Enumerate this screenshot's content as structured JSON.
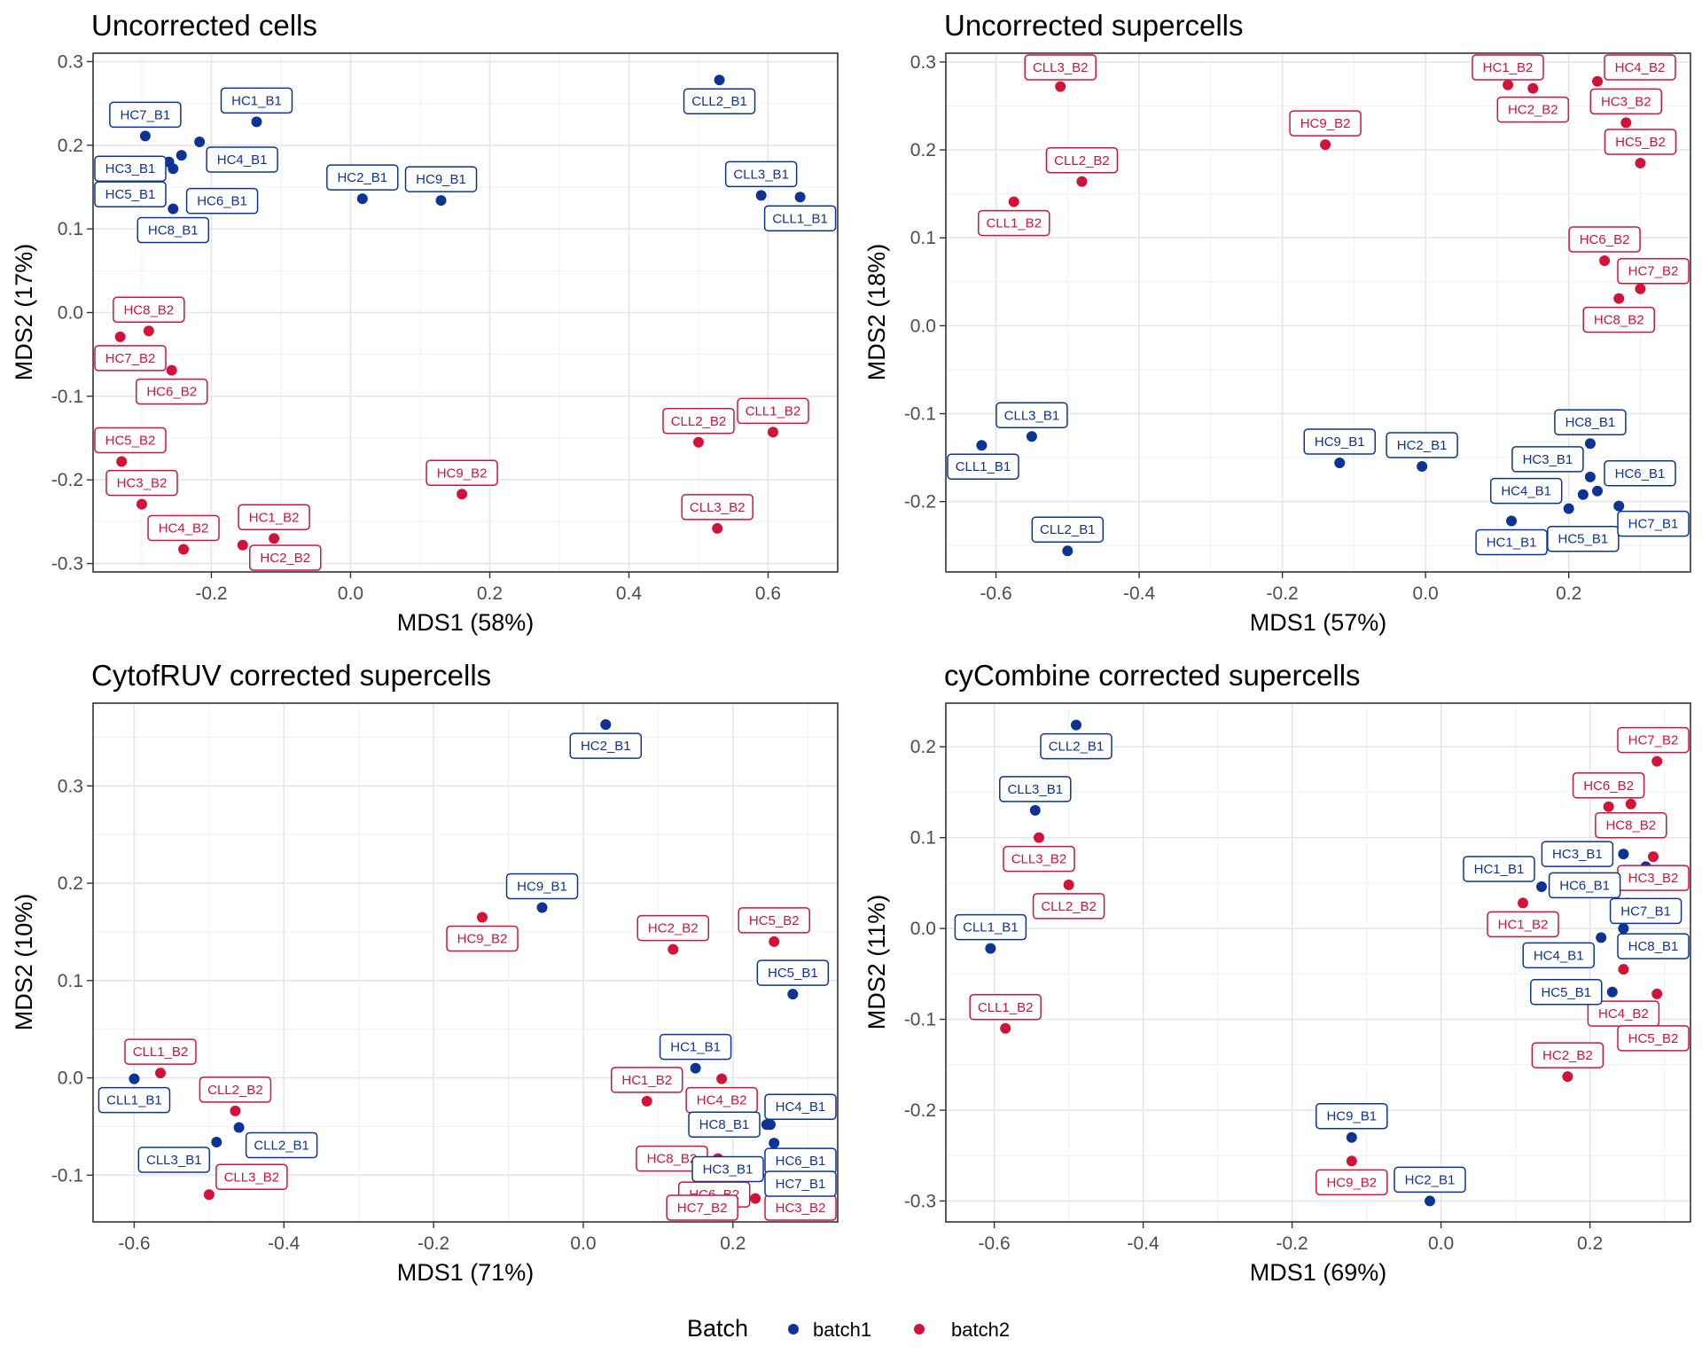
{
  "colors": {
    "batch1": "#0d3395",
    "batch2": "#d1133a"
  },
  "legend": {
    "title": "Batch",
    "items": [
      {
        "label": "batch1",
        "color": "#0d3395"
      },
      {
        "label": "batch2",
        "color": "#d1133a"
      }
    ]
  },
  "chart_data": [
    {
      "type": "scatter",
      "title": "Uncorrected cells",
      "xlabel": "MDS1 (58%)",
      "ylabel": "MDS2 (17%)",
      "xlim": [
        -0.37,
        0.7
      ],
      "ylim": [
        -0.31,
        0.31
      ],
      "xticks": [
        -0.2,
        0.0,
        0.2,
        0.4,
        0.6
      ],
      "xtick_labels": [
        "-0.2",
        "0.0",
        "0.2",
        "0.4",
        "0.6"
      ],
      "yticks": [
        -0.3,
        -0.2,
        -0.1,
        0.0,
        0.1,
        0.2,
        0.3
      ],
      "ytick_labels": [
        "-0.3",
        "-0.2",
        "-0.1",
        "0.0",
        "0.1",
        "0.2",
        "0.3"
      ],
      "grid": true,
      "points": [
        {
          "label": "CLL2_B1",
          "batch": "batch1",
          "x": 0.53,
          "y": 0.278
        },
        {
          "label": "HC1_B1",
          "batch": "batch1",
          "x": -0.135,
          "y": 0.228
        },
        {
          "label": "HC7_B1",
          "batch": "batch1",
          "x": -0.295,
          "y": 0.211
        },
        {
          "label": "HC4_B1",
          "batch": "batch1",
          "x": -0.217,
          "y": 0.204
        },
        {
          "label": "HC5_B1",
          "batch": "batch1",
          "x": -0.243,
          "y": 0.188
        },
        {
          "label": "HC6_B1",
          "batch": "batch1",
          "x": -0.261,
          "y": 0.18
        },
        {
          "label": "HC3_B1",
          "batch": "batch1",
          "x": -0.255,
          "y": 0.172
        },
        {
          "label": "HC8_B1",
          "batch": "batch1",
          "x": -0.255,
          "y": 0.124
        },
        {
          "label": "HC2_B1",
          "batch": "batch1",
          "x": 0.017,
          "y": 0.136
        },
        {
          "label": "HC9_B1",
          "batch": "batch1",
          "x": 0.13,
          "y": 0.134
        },
        {
          "label": "CLL3_B1",
          "batch": "batch1",
          "x": 0.59,
          "y": 0.14
        },
        {
          "label": "CLL1_B1",
          "batch": "batch1",
          "x": 0.646,
          "y": 0.138
        },
        {
          "label": "HC8_B2",
          "batch": "batch2",
          "x": -0.29,
          "y": -0.022
        },
        {
          "label": "HC7_B2",
          "batch": "batch2",
          "x": -0.331,
          "y": -0.029
        },
        {
          "label": "HC6_B2",
          "batch": "batch2",
          "x": -0.257,
          "y": -0.069
        },
        {
          "label": "HC5_B2",
          "batch": "batch2",
          "x": -0.329,
          "y": -0.178
        },
        {
          "label": "HC3_B2",
          "batch": "batch2",
          "x": -0.3,
          "y": -0.229
        },
        {
          "label": "HC4_B2",
          "batch": "batch2",
          "x": -0.24,
          "y": -0.283
        },
        {
          "label": "HC2_B2",
          "batch": "batch2",
          "x": -0.155,
          "y": -0.278
        },
        {
          "label": "HC1_B2",
          "batch": "batch2",
          "x": -0.11,
          "y": -0.27
        },
        {
          "label": "HC9_B2",
          "batch": "batch2",
          "x": 0.16,
          "y": -0.217
        },
        {
          "label": "CLL1_B2",
          "batch": "batch2",
          "x": 0.607,
          "y": -0.143
        },
        {
          "label": "CLL2_B2",
          "batch": "batch2",
          "x": 0.5,
          "y": -0.155
        },
        {
          "label": "CLL3_B2",
          "batch": "batch2",
          "x": 0.527,
          "y": -0.258
        }
      ]
    },
    {
      "type": "scatter",
      "title": "Uncorrected supercells",
      "xlabel": "MDS1 (57%)",
      "ylabel": "MDS2 (18%)",
      "xlim": [
        -0.67,
        0.37
      ],
      "ylim": [
        -0.28,
        0.31
      ],
      "xticks": [
        -0.6,
        -0.4,
        -0.2,
        0.0,
        0.2
      ],
      "xtick_labels": [
        "-0.6",
        "-0.4",
        "-0.2",
        "0.0",
        "0.2"
      ],
      "yticks": [
        -0.2,
        -0.1,
        0.0,
        0.1,
        0.2,
        0.3
      ],
      "ytick_labels": [
        "-0.2",
        "-0.1",
        "0.0",
        "0.1",
        "0.2",
        "0.3"
      ],
      "grid": true,
      "points": [
        {
          "label": "CLL3_B2",
          "batch": "batch2",
          "x": -0.51,
          "y": 0.272
        },
        {
          "label": "HC1_B2",
          "batch": "batch2",
          "x": 0.115,
          "y": 0.274
        },
        {
          "label": "HC2_B2",
          "batch": "batch2",
          "x": 0.15,
          "y": 0.27
        },
        {
          "label": "HC4_B2",
          "batch": "batch2",
          "x": 0.24,
          "y": 0.278
        },
        {
          "label": "HC3_B2",
          "batch": "batch2",
          "x": 0.28,
          "y": 0.231
        },
        {
          "label": "HC5_B2",
          "batch": "batch2",
          "x": 0.3,
          "y": 0.185
        },
        {
          "label": "HC9_B2",
          "batch": "batch2",
          "x": -0.14,
          "y": 0.206
        },
        {
          "label": "CLL2_B2",
          "batch": "batch2",
          "x": -0.48,
          "y": 0.164
        },
        {
          "label": "CLL1_B2",
          "batch": "batch2",
          "x": -0.575,
          "y": 0.141
        },
        {
          "label": "HC6_B2",
          "batch": "batch2",
          "x": 0.25,
          "y": 0.074
        },
        {
          "label": "HC7_B2",
          "batch": "batch2",
          "x": 0.3,
          "y": 0.042
        },
        {
          "label": "HC8_B2",
          "batch": "batch2",
          "x": 0.27,
          "y": 0.031
        },
        {
          "label": "CLL3_B1",
          "batch": "batch1",
          "x": -0.55,
          "y": -0.126
        },
        {
          "label": "CLL1_B1",
          "batch": "batch1",
          "x": -0.62,
          "y": -0.136
        },
        {
          "label": "HC9_B1",
          "batch": "batch1",
          "x": -0.12,
          "y": -0.156
        },
        {
          "label": "HC2_B1",
          "batch": "batch1",
          "x": -0.005,
          "y": -0.16
        },
        {
          "label": "HC8_B1",
          "batch": "batch1",
          "x": 0.23,
          "y": -0.134
        },
        {
          "label": "HC3_B1",
          "batch": "batch1",
          "x": 0.23,
          "y": -0.172
        },
        {
          "label": "HC6_B1",
          "batch": "batch1",
          "x": 0.24,
          "y": -0.188
        },
        {
          "label": "HC5_B1",
          "batch": "batch1",
          "x": 0.22,
          "y": -0.192
        },
        {
          "label": "HC7_B1",
          "batch": "batch1",
          "x": 0.27,
          "y": -0.205
        },
        {
          "label": "HC4_B1",
          "batch": "batch1",
          "x": 0.2,
          "y": -0.208
        },
        {
          "label": "HC1_B1",
          "batch": "batch1",
          "x": 0.12,
          "y": -0.222
        },
        {
          "label": "CLL2_B1",
          "batch": "batch1",
          "x": -0.5,
          "y": -0.256
        }
      ]
    },
    {
      "type": "scatter",
      "title": "CytofRUV corrected supercells",
      "xlabel": "MDS1 (71%)",
      "ylabel": "MDS2 (10%)",
      "xlim": [
        -0.655,
        0.34
      ],
      "ylim": [
        -0.148,
        0.385
      ],
      "xticks": [
        -0.6,
        -0.4,
        -0.2,
        0.0,
        0.2
      ],
      "xtick_labels": [
        "-0.6",
        "-0.4",
        "-0.2",
        "0.0",
        "0.2"
      ],
      "yticks": [
        -0.1,
        0.0,
        0.1,
        0.2,
        0.3
      ],
      "ytick_labels": [
        "-0.1",
        "0.0",
        "0.1",
        "0.2",
        "0.3"
      ],
      "grid": true,
      "points": [
        {
          "label": "HC2_B1",
          "batch": "batch1",
          "x": 0.03,
          "y": 0.363
        },
        {
          "label": "HC9_B1",
          "batch": "batch1",
          "x": -0.055,
          "y": 0.175
        },
        {
          "label": "HC9_B2",
          "batch": "batch2",
          "x": -0.135,
          "y": 0.165
        },
        {
          "label": "HC2_B2",
          "batch": "batch2",
          "x": 0.12,
          "y": 0.132
        },
        {
          "label": "HC5_B2",
          "batch": "batch2",
          "x": 0.255,
          "y": 0.14
        },
        {
          "label": "HC5_B1",
          "batch": "batch1",
          "x": 0.28,
          "y": 0.086
        },
        {
          "label": "HC1_B1",
          "batch": "batch1",
          "x": 0.15,
          "y": 0.01
        },
        {
          "label": "HC4_B2",
          "batch": "batch2",
          "x": 0.185,
          "y": -0.001
        },
        {
          "label": "HC1_B2",
          "batch": "batch2",
          "x": 0.085,
          "y": -0.024
        },
        {
          "label": "HC4_B1",
          "batch": "batch1",
          "x": 0.245,
          "y": -0.048
        },
        {
          "label": "HC8_B1",
          "batch": "batch1",
          "x": 0.25,
          "y": -0.048
        },
        {
          "label": "HC6_B1",
          "batch": "batch1",
          "x": 0.255,
          "y": -0.067
        },
        {
          "label": "HC8_B2",
          "batch": "batch2",
          "x": 0.18,
          "y": -0.083
        },
        {
          "label": "HC6_B2",
          "batch": "batch2",
          "x": 0.175,
          "y": -0.098
        },
        {
          "label": "HC3_B2",
          "batch": "batch2",
          "x": 0.235,
          "y": -0.1
        },
        {
          "label": "HC7_B1",
          "batch": "batch1",
          "x": 0.3,
          "y": -0.087
        },
        {
          "label": "HC3_B1",
          "batch": "batch1",
          "x": 0.25,
          "y": -0.112
        },
        {
          "label": "HC7_B2",
          "batch": "batch2",
          "x": 0.23,
          "y": -0.124
        },
        {
          "label": "CLL1_B1",
          "batch": "batch1",
          "x": -0.6,
          "y": -0.001
        },
        {
          "label": "CLL1_B2",
          "batch": "batch2",
          "x": -0.565,
          "y": 0.005
        },
        {
          "label": "CLL2_B2",
          "batch": "batch2",
          "x": -0.465,
          "y": -0.034
        },
        {
          "label": "CLL2_B1",
          "batch": "batch1",
          "x": -0.46,
          "y": -0.051
        },
        {
          "label": "CLL3_B1",
          "batch": "batch1",
          "x": -0.49,
          "y": -0.066
        },
        {
          "label": "CLL3_B2",
          "batch": "batch2",
          "x": -0.5,
          "y": -0.12
        }
      ]
    },
    {
      "type": "scatter",
      "title": "cyCombine corrected supercells",
      "xlabel": "MDS1 (69%)",
      "ylabel": "MDS2 (11%)",
      "xlim": [
        -0.665,
        0.335
      ],
      "ylim": [
        -0.323,
        0.248
      ],
      "xticks": [
        -0.6,
        -0.4,
        -0.2,
        0.0,
        0.2
      ],
      "xtick_labels": [
        "-0.6",
        "-0.4",
        "-0.2",
        "0.0",
        "0.2"
      ],
      "yticks": [
        -0.3,
        -0.2,
        -0.1,
        0.0,
        0.1,
        0.2
      ],
      "ytick_labels": [
        "-0.3",
        "-0.2",
        "-0.1",
        "0.0",
        "0.1",
        "0.2"
      ],
      "grid": true,
      "points": [
        {
          "label": "CLL2_B1",
          "batch": "batch1",
          "x": -0.49,
          "y": 0.224
        },
        {
          "label": "CLL3_B1",
          "batch": "batch1",
          "x": -0.545,
          "y": 0.13
        },
        {
          "label": "CLL3_B2",
          "batch": "batch2",
          "x": -0.54,
          "y": 0.1
        },
        {
          "label": "CLL2_B2",
          "batch": "batch2",
          "x": -0.5,
          "y": 0.048
        },
        {
          "label": "CLL1_B1",
          "batch": "batch1",
          "x": -0.605,
          "y": -0.022
        },
        {
          "label": "CLL1_B2",
          "batch": "batch2",
          "x": -0.585,
          "y": -0.11
        },
        {
          "label": "HC9_B1",
          "batch": "batch1",
          "x": -0.12,
          "y": -0.23
        },
        {
          "label": "HC9_B2",
          "batch": "batch2",
          "x": -0.12,
          "y": -0.256
        },
        {
          "label": "HC2_B1",
          "batch": "batch1",
          "x": -0.015,
          "y": -0.3
        },
        {
          "label": "HC7_B2",
          "batch": "batch2",
          "x": 0.29,
          "y": 0.184
        },
        {
          "label": "HC6_B2",
          "batch": "batch2",
          "x": 0.225,
          "y": 0.134
        },
        {
          "label": "HC8_B2",
          "batch": "batch2",
          "x": 0.255,
          "y": 0.137
        },
        {
          "label": "HC3_B1",
          "batch": "batch1",
          "x": 0.245,
          "y": 0.082
        },
        {
          "label": "HC3_B2",
          "batch": "batch2",
          "x": 0.285,
          "y": 0.079
        },
        {
          "label": "HC7_B1",
          "batch": "batch1",
          "x": 0.275,
          "y": 0.068
        },
        {
          "label": "HC1_B1",
          "batch": "batch1",
          "x": 0.135,
          "y": 0.046
        },
        {
          "label": "HC6_B1",
          "batch": "batch1",
          "x": 0.25,
          "y": 0.028
        },
        {
          "label": "HC1_B2",
          "batch": "batch2",
          "x": 0.11,
          "y": 0.028
        },
        {
          "label": "HC8_B1",
          "batch": "batch1",
          "x": 0.245,
          "y": 0.0
        },
        {
          "label": "HC4_B1",
          "batch": "batch1",
          "x": 0.215,
          "y": -0.01
        },
        {
          "label": "HC4_B2",
          "batch": "batch2",
          "x": 0.245,
          "y": -0.045
        },
        {
          "label": "HC5_B1",
          "batch": "batch1",
          "x": 0.23,
          "y": -0.07
        },
        {
          "label": "HC5_B2",
          "batch": "batch2",
          "x": 0.29,
          "y": -0.072
        },
        {
          "label": "HC2_B2",
          "batch": "batch2",
          "x": 0.17,
          "y": -0.163
        }
      ]
    }
  ]
}
